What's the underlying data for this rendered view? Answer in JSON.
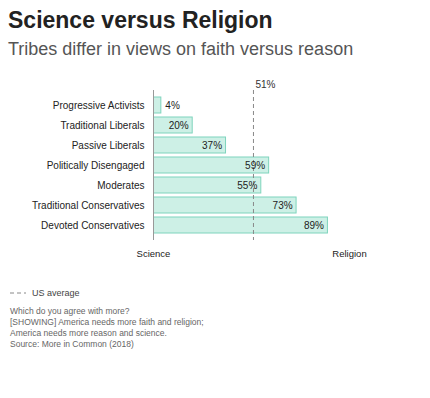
{
  "chart_data": {
    "type": "bar",
    "orientation": "horizontal",
    "title": "Science versus Religion",
    "subtitle": "Tribes differ in views on faith versus reason",
    "categories": [
      "Progressive Activists",
      "Traditional Liberals",
      "Passive Liberals",
      "Politically Disengaged",
      "Moderates",
      "Traditional Conservatives",
      "Devoted Conservatives"
    ],
    "values": [
      4,
      20,
      37,
      59,
      55,
      73,
      89
    ],
    "value_labels": [
      "4%",
      "20%",
      "37%",
      "59%",
      "55%",
      "73%",
      "89%"
    ],
    "data_labels": true,
    "color": "#cdf0e6",
    "xlim": [
      0,
      100
    ],
    "xticks": [
      {
        "value": 0,
        "label": "Science"
      },
      {
        "value": 100,
        "label": "Religion"
      }
    ],
    "grid": false,
    "average": {
      "value": 51,
      "label": "51%",
      "name": "US average"
    },
    "caption": [
      "Which do you agree with more?",
      "[SHOWING] America needs more faith and religion;",
      "America needs more reason and science."
    ],
    "source": "Source: More in Common (2018)"
  }
}
